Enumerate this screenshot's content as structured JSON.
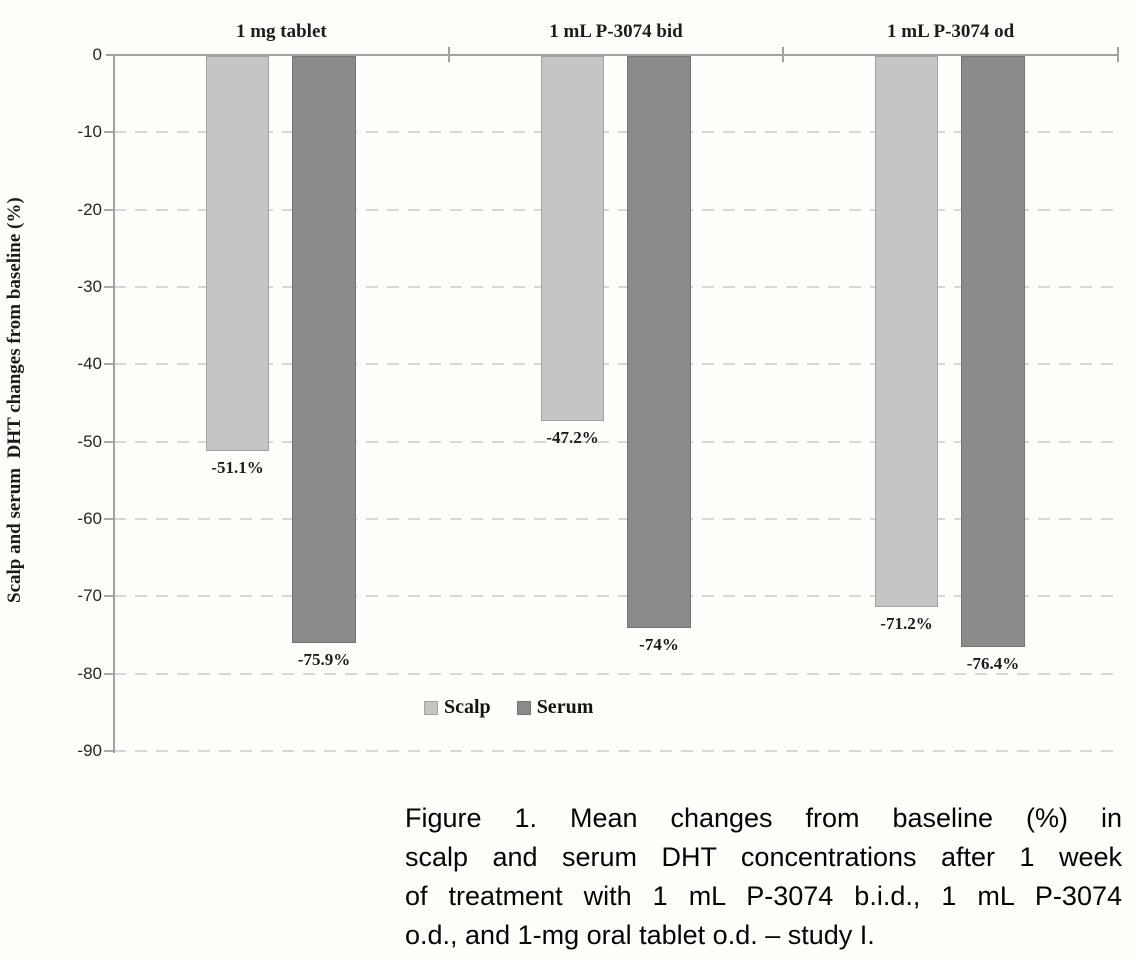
{
  "chart_data": {
    "type": "bar",
    "title": "",
    "xlabel": "",
    "ylabel": "Scalp and serum  DHT changes from baseline (%)",
    "categories": [
      "1 mg tablet",
      "1 mL P-3074 bid",
      "1 mL P-3074 od"
    ],
    "series": [
      {
        "name": "Scalp",
        "color": "#c5c5c5",
        "border_color": "#a2a2a2",
        "values": [
          -51.1,
          -47.2,
          -71.2
        ],
        "value_labels": [
          "-51.1%",
          "-47.2%",
          "-71.2%"
        ]
      },
      {
        "name": "Serum",
        "color": "#8b8b8b",
        "border_color": "#757575",
        "values": [
          -75.9,
          -74,
          -76.4
        ],
        "value_labels": [
          "-75.9%",
          "-74%",
          "-76.4%"
        ]
      }
    ],
    "ylim": [
      -90,
      0
    ],
    "yticks": [
      "0",
      "-10",
      "-20",
      "-30",
      "-40",
      "-50",
      "-60",
      "-70",
      "-80",
      "-90"
    ],
    "grid": "horizontal-dashed",
    "legend_position": "bottom-center",
    "axis_color": "#a2a2a2",
    "grid_color": "#d7d7d7",
    "text_color": "#1b1b1b"
  },
  "caption": {
    "lines": [
      "Figure 1.  Mean changes from baseline (%) in",
      "scalp and serum DHT concentrations after 1 week",
      "of treatment with 1 mL P-3074 b.i.d., 1 mL P-3074",
      "o.d., and 1-mg oral tablet o.d. – study I."
    ]
  }
}
